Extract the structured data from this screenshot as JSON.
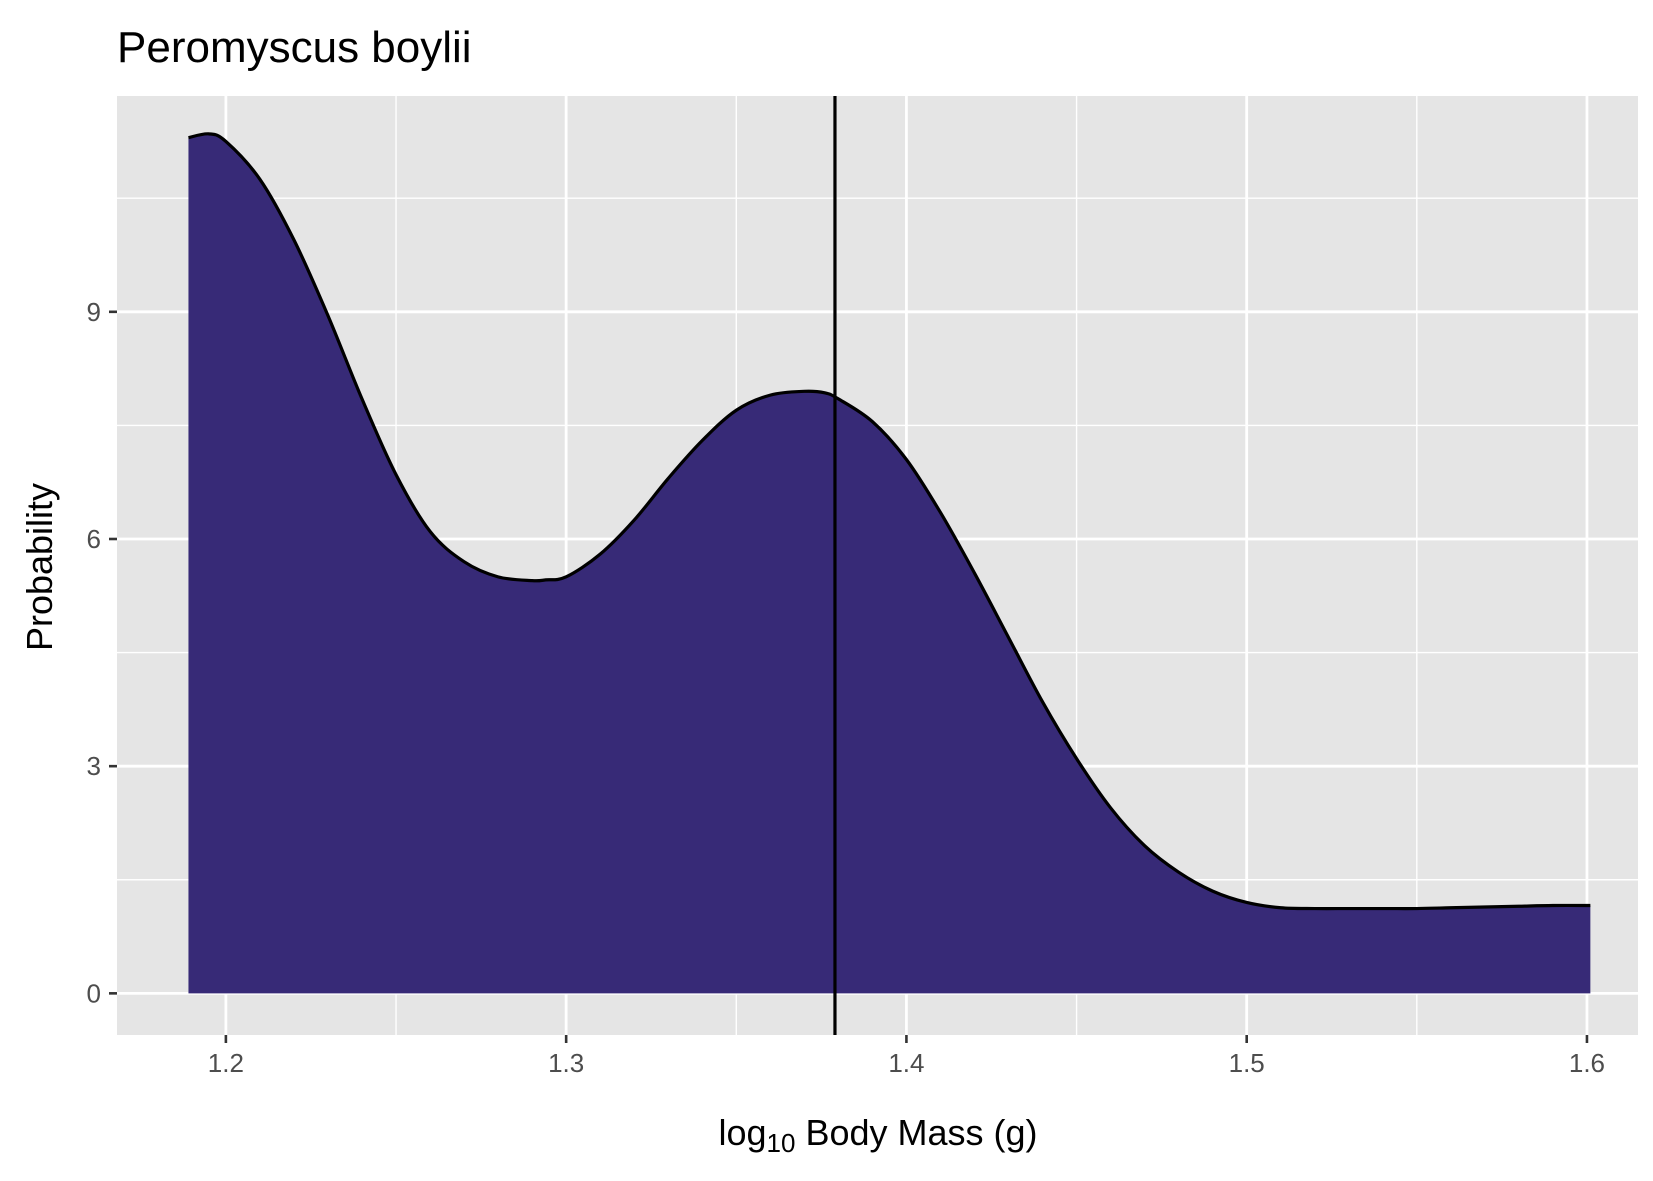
{
  "chart_data": {
    "type": "area",
    "title": "Peromyscus boylii",
    "xlabel": {
      "prefix": "log",
      "subscript": "10",
      "suffix": " Body Mass (g)"
    },
    "ylabel": "Probability",
    "xlim": [
      1.168,
      1.615
    ],
    "ylim": [
      -0.55,
      11.85
    ],
    "x_ticks": [
      1.2,
      1.3,
      1.4,
      1.5,
      1.6
    ],
    "x_tick_labels": [
      "1.2",
      "1.3",
      "1.4",
      "1.5",
      "1.6"
    ],
    "y_ticks": [
      0,
      3,
      6,
      9
    ],
    "y_tick_labels": [
      "0",
      "3",
      "6",
      "9"
    ],
    "grid": true,
    "background_color": "#e5e5e5",
    "fill_color": "#372a77",
    "line_color": "#000000",
    "vline_x": 1.379,
    "series": [
      {
        "x": [
          1.189,
          1.195,
          1.2,
          1.21,
          1.22,
          1.23,
          1.24,
          1.25,
          1.26,
          1.27,
          1.28,
          1.29,
          1.294,
          1.3,
          1.31,
          1.32,
          1.33,
          1.34,
          1.35,
          1.36,
          1.37,
          1.376,
          1.38,
          1.39,
          1.4,
          1.41,
          1.42,
          1.43,
          1.44,
          1.45,
          1.46,
          1.47,
          1.48,
          1.49,
          1.5,
          1.51,
          1.52,
          1.53,
          1.54,
          1.55,
          1.56,
          1.57,
          1.58,
          1.59,
          1.601
        ],
        "y": [
          11.3,
          11.35,
          11.25,
          10.75,
          9.95,
          8.95,
          7.85,
          6.85,
          6.1,
          5.7,
          5.5,
          5.45,
          5.46,
          5.5,
          5.8,
          6.25,
          6.8,
          7.3,
          7.7,
          7.9,
          7.95,
          7.93,
          7.85,
          7.55,
          7.05,
          6.35,
          5.55,
          4.7,
          3.85,
          3.1,
          2.45,
          1.95,
          1.6,
          1.35,
          1.2,
          1.13,
          1.12,
          1.12,
          1.12,
          1.12,
          1.13,
          1.14,
          1.15,
          1.16,
          1.16
        ]
      }
    ]
  }
}
